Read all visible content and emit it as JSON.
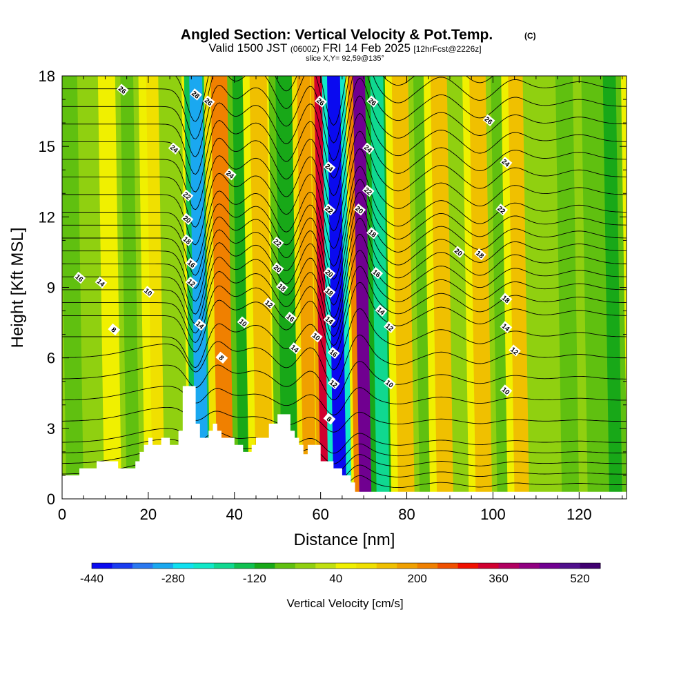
{
  "chart_data": {
    "type": "heatmap",
    "title": "Angled Section: Vertical Velocity & Pot.Temp.",
    "title_mark": "(C)",
    "subtitle": {
      "main": "Valid 1500 JST",
      "zulu": "(0600Z)",
      "date": "FRI 14 Feb 2025",
      "fcst": "[12hrFcst@2226z]"
    },
    "slice_text": "slice X,Y= 92,59@135°",
    "xlabel": "Distance [nm]",
    "ylabel": "Height [Kft MSL]",
    "xlim": [
      0,
      131
    ],
    "ylim": [
      0,
      18
    ],
    "x_ticks": [
      0,
      20,
      40,
      60,
      80,
      100,
      120
    ],
    "x_tick_labels": [
      "0",
      "20",
      "40",
      "60",
      "80",
      "100",
      "120"
    ],
    "y_ticks": [
      0,
      3,
      6,
      9,
      12,
      15,
      18
    ],
    "y_tick_labels": [
      "0",
      "3",
      "6",
      "9",
      "12",
      "15",
      "18"
    ],
    "colorbar": {
      "label": "Vertical Velocity [cm/s]",
      "min": -440,
      "max": 560,
      "step": 40,
      "tick_values": [
        -440,
        -280,
        -120,
        40,
        200,
        360,
        520
      ],
      "tick_labels": [
        "-440",
        "-280",
        "-120",
        "40",
        "200",
        "360",
        "520"
      ],
      "colors": [
        "#0a0af0",
        "#1a3cf0",
        "#2a78f0",
        "#1aa8f0",
        "#10e0f0",
        "#10e8c8",
        "#10d890",
        "#10c050",
        "#18a818",
        "#60c010",
        "#90d010",
        "#c0e010",
        "#f0f000",
        "#f0e000",
        "#f0c000",
        "#f0a000",
        "#f08000",
        "#f05000",
        "#f01000",
        "#d00030",
        "#b00060",
        "#900080",
        "#700090",
        "#50108c",
        "#400070"
      ]
    },
    "terrain_kft": [
      [
        0,
        1.0
      ],
      [
        4,
        1.0
      ],
      [
        4,
        1.3
      ],
      [
        8,
        1.3
      ],
      [
        8,
        1.6
      ],
      [
        13,
        1.6
      ],
      [
        13,
        1.3
      ],
      [
        17,
        1.3
      ],
      [
        17,
        1.6
      ],
      [
        18,
        1.6
      ],
      [
        18,
        2.0
      ],
      [
        19,
        2.0
      ],
      [
        19,
        2.3
      ],
      [
        20,
        2.3
      ],
      [
        20,
        2.6
      ],
      [
        21,
        2.6
      ],
      [
        21,
        2.3
      ],
      [
        23,
        2.3
      ],
      [
        23,
        2.6
      ],
      [
        25,
        2.6
      ],
      [
        25,
        2.3
      ],
      [
        27,
        2.3
      ],
      [
        27,
        2.9
      ],
      [
        28,
        2.9
      ],
      [
        28,
        4.8
      ],
      [
        31,
        4.8
      ],
      [
        31,
        3.2
      ],
      [
        32,
        3.2
      ],
      [
        32,
        2.6
      ],
      [
        34,
        2.6
      ],
      [
        34,
        2.9
      ],
      [
        35,
        2.9
      ],
      [
        35,
        3.2
      ],
      [
        36,
        3.2
      ],
      [
        36,
        2.9
      ],
      [
        37,
        2.9
      ],
      [
        37,
        2.6
      ],
      [
        40,
        2.6
      ],
      [
        40,
        2.3
      ],
      [
        42,
        2.3
      ],
      [
        42,
        2.0
      ],
      [
        44,
        2.0
      ],
      [
        44,
        2.3
      ],
      [
        45,
        2.3
      ],
      [
        45,
        2.6
      ],
      [
        48,
        2.6
      ],
      [
        48,
        3.2
      ],
      [
        50,
        3.2
      ],
      [
        50,
        3.6
      ],
      [
        53,
        3.6
      ],
      [
        53,
        2.9
      ],
      [
        54,
        2.9
      ],
      [
        54,
        2.6
      ],
      [
        55,
        2.6
      ],
      [
        55,
        2.3
      ],
      [
        56,
        2.3
      ],
      [
        56,
        1.9
      ],
      [
        57,
        1.9
      ],
      [
        57,
        2.3
      ],
      [
        60,
        2.3
      ],
      [
        60,
        1.6
      ],
      [
        63,
        1.6
      ],
      [
        63,
        1.3
      ],
      [
        65,
        1.3
      ],
      [
        65,
        1.0
      ],
      [
        67,
        1.0
      ],
      [
        67,
        0.7
      ],
      [
        68,
        0.7
      ],
      [
        68,
        0.3
      ],
      [
        131,
        0.3
      ]
    ],
    "vertical_velocity_bands_cm_s": [
      {
        "x": 1,
        "w": 4,
        "value": -60
      },
      {
        "x": 7,
        "w": 3,
        "value": -40
      },
      {
        "x": 11,
        "w": 3,
        "value": 40
      },
      {
        "x": 15,
        "w": 3,
        "value": -80
      },
      {
        "x": 21,
        "w": 3,
        "value": 80
      },
      {
        "x": 25,
        "w": 3,
        "value": -40
      },
      {
        "x": 31,
        "w": 3,
        "value": -320
      },
      {
        "x": 36,
        "w": 4,
        "value": 200
      },
      {
        "x": 41,
        "w": 3,
        "value": -120
      },
      {
        "x": 45,
        "w": 4,
        "value": 120
      },
      {
        "x": 51,
        "w": 4,
        "value": -120
      },
      {
        "x": 56,
        "w": 3,
        "value": 160
      },
      {
        "x": 60,
        "w": 2,
        "value": 320
      },
      {
        "x": 63,
        "w": 3,
        "value": -440
      },
      {
        "x": 69,
        "w": 3,
        "value": 440
      },
      {
        "x": 73,
        "w": 3,
        "value": -200
      },
      {
        "x": 78,
        "w": 4,
        "value": 120
      },
      {
        "x": 83,
        "w": 3,
        "value": -80
      },
      {
        "x": 87,
        "w": 4,
        "value": 120
      },
      {
        "x": 92,
        "w": 3,
        "value": -40
      },
      {
        "x": 96,
        "w": 4,
        "value": 120
      },
      {
        "x": 101,
        "w": 3,
        "value": -80
      },
      {
        "x": 105,
        "w": 4,
        "value": 120
      },
      {
        "x": 110,
        "w": 4,
        "value": -40
      },
      {
        "x": 116,
        "w": 4,
        "value": -80
      },
      {
        "x": 122,
        "w": 4,
        "value": -60
      },
      {
        "x": 127,
        "w": 3,
        "value": -100
      }
    ],
    "pot_temp_contour_levels_c": [
      8,
      10,
      12,
      14,
      16,
      18,
      20,
      22,
      24,
      26,
      28
    ],
    "pot_temp_labels": [
      {
        "x": 31,
        "y": 17.2,
        "text": "28"
      },
      {
        "x": 34,
        "y": 16.9,
        "text": "26"
      },
      {
        "x": 60,
        "y": 16.9,
        "text": "26"
      },
      {
        "x": 72,
        "y": 16.9,
        "text": "26"
      },
      {
        "x": 99,
        "y": 16.1,
        "text": "26"
      },
      {
        "x": 14,
        "y": 17.4,
        "text": "26"
      },
      {
        "x": 26,
        "y": 14.9,
        "text": "24"
      },
      {
        "x": 39,
        "y": 13.8,
        "text": "24"
      },
      {
        "x": 62,
        "y": 14.1,
        "text": "24"
      },
      {
        "x": 71,
        "y": 14.9,
        "text": "24"
      },
      {
        "x": 103,
        "y": 14.3,
        "text": "24"
      },
      {
        "x": 29,
        "y": 12.9,
        "text": "22"
      },
      {
        "x": 62,
        "y": 12.3,
        "text": "22"
      },
      {
        "x": 71,
        "y": 13.1,
        "text": "22"
      },
      {
        "x": 50,
        "y": 10.9,
        "text": "22"
      },
      {
        "x": 102,
        "y": 12.3,
        "text": "22"
      },
      {
        "x": 29,
        "y": 11.9,
        "text": "20"
      },
      {
        "x": 69,
        "y": 12.3,
        "text": "20"
      },
      {
        "x": 62,
        "y": 9.6,
        "text": "20"
      },
      {
        "x": 92,
        "y": 10.5,
        "text": "20"
      },
      {
        "x": 50,
        "y": 9.8,
        "text": "20"
      },
      {
        "x": 29,
        "y": 11.0,
        "text": "18"
      },
      {
        "x": 72,
        "y": 11.3,
        "text": "18"
      },
      {
        "x": 62,
        "y": 8.8,
        "text": "18"
      },
      {
        "x": 51,
        "y": 9.0,
        "text": "18"
      },
      {
        "x": 97,
        "y": 10.4,
        "text": "18"
      },
      {
        "x": 103,
        "y": 8.5,
        "text": "18"
      },
      {
        "x": 30,
        "y": 10.0,
        "text": "16"
      },
      {
        "x": 73,
        "y": 9.6,
        "text": "16"
      },
      {
        "x": 53,
        "y": 7.7,
        "text": "16"
      },
      {
        "x": 63,
        "y": 6.2,
        "text": "16"
      },
      {
        "x": 4,
        "y": 9.4,
        "text": "16"
      },
      {
        "x": 9,
        "y": 9.2,
        "text": "14"
      },
      {
        "x": 32,
        "y": 7.4,
        "text": "14"
      },
      {
        "x": 74,
        "y": 8.0,
        "text": "14"
      },
      {
        "x": 54,
        "y": 6.4,
        "text": "14"
      },
      {
        "x": 62,
        "y": 7.6,
        "text": "14"
      },
      {
        "x": 103,
        "y": 7.3,
        "text": "14"
      },
      {
        "x": 30,
        "y": 9.2,
        "text": "12"
      },
      {
        "x": 48,
        "y": 8.3,
        "text": "12"
      },
      {
        "x": 76,
        "y": 7.3,
        "text": "12"
      },
      {
        "x": 63,
        "y": 4.9,
        "text": "12"
      },
      {
        "x": 105,
        "y": 6.3,
        "text": "12"
      },
      {
        "x": 20,
        "y": 8.8,
        "text": "10"
      },
      {
        "x": 42,
        "y": 7.5,
        "text": "10"
      },
      {
        "x": 59,
        "y": 6.9,
        "text": "10"
      },
      {
        "x": 76,
        "y": 4.9,
        "text": "10"
      },
      {
        "x": 103,
        "y": 4.6,
        "text": "10"
      },
      {
        "x": 12,
        "y": 7.2,
        "text": "8"
      },
      {
        "x": 37,
        "y": 6.0,
        "text": "8"
      },
      {
        "x": 62,
        "y": 3.4,
        "text": "8"
      }
    ]
  }
}
